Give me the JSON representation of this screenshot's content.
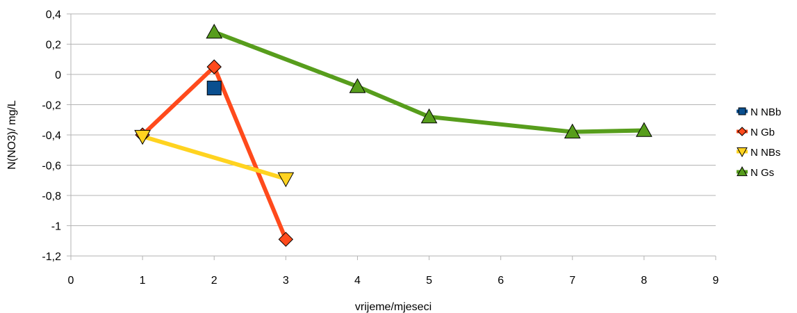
{
  "chart_data": {
    "type": "scatter",
    "title": "",
    "xlabel": "vrijeme/mjeseci",
    "ylabel": "N(NO3)/ mg/L",
    "xlim": [
      0,
      9
    ],
    "ylim": [
      -1.2,
      0.4
    ],
    "xticks": [
      0,
      1,
      2,
      3,
      4,
      5,
      6,
      7,
      8,
      9
    ],
    "yticks": [
      0.4,
      0.2,
      0,
      -0.2,
      -0.4,
      -0.6,
      -0.8,
      -1,
      -1.2
    ],
    "ytick_labels": [
      "0,4",
      "0,2",
      "0",
      "-0,2",
      "-0,4",
      "-0,6",
      "-0,8",
      "-1",
      "-1,2"
    ],
    "xtick_labels": [
      "0",
      "1",
      "2",
      "3",
      "4",
      "5",
      "6",
      "7",
      "8",
      "9"
    ],
    "grid": "horizontal",
    "legend_position": "right",
    "series": [
      {
        "name": "N NBb",
        "color": "#0a4f8f",
        "marker": "square",
        "x": [
          2
        ],
        "y": [
          -0.09
        ]
      },
      {
        "name": "N Gb",
        "color": "#ff4a1c",
        "marker": "diamond",
        "x": [
          1,
          2,
          3
        ],
        "y": [
          -0.4,
          0.05,
          -1.09
        ]
      },
      {
        "name": "N NBs",
        "color": "#ffd320",
        "marker": "triangle-down",
        "x": [
          1,
          3
        ],
        "y": [
          -0.41,
          -0.69
        ]
      },
      {
        "name": "N Gs",
        "color": "#579d1c",
        "marker": "triangle-up",
        "x": [
          2,
          4,
          5,
          7,
          8
        ],
        "y": [
          0.28,
          -0.08,
          -0.28,
          -0.38,
          -0.37
        ]
      }
    ]
  }
}
